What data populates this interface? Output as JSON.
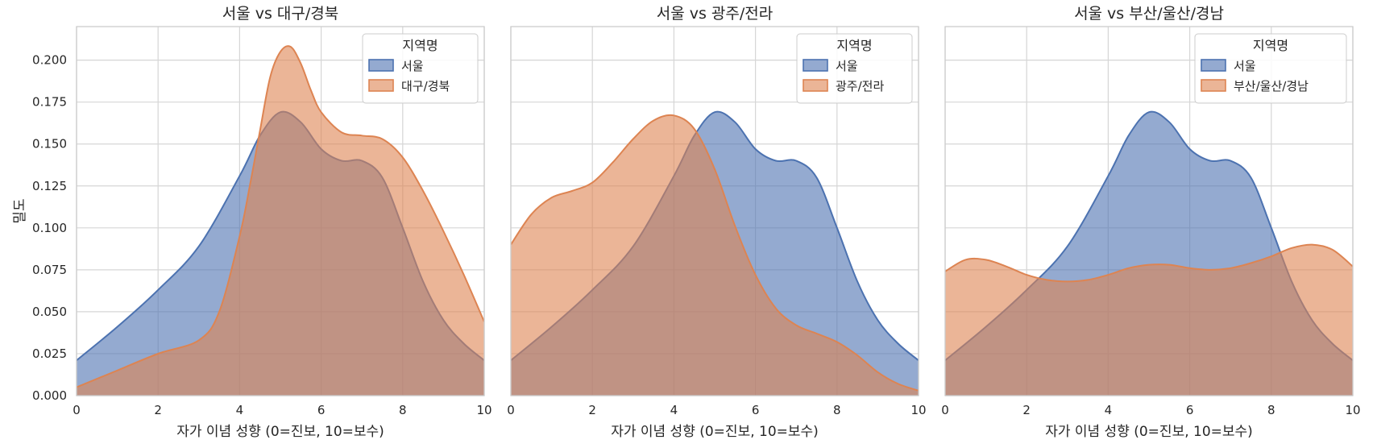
{
  "chart_data": [
    {
      "type": "area",
      "title": "서울 vs 대구/경북",
      "xlabel": "자가 이념 성향 (0=진보, 10=보수)",
      "ylabel": "밀도",
      "xlim": [
        0,
        10
      ],
      "ylim": [
        0,
        0.22
      ],
      "xticks": [
        "0",
        "2",
        "4",
        "6",
        "8",
        "10"
      ],
      "yticks": [
        "0.000",
        "0.025",
        "0.050",
        "0.075",
        "0.100",
        "0.125",
        "0.150",
        "0.175",
        "0.200"
      ],
      "grid": true,
      "legend": {
        "title": "지역명",
        "placement": "top-right"
      },
      "series": [
        {
          "name": "서울",
          "color": "#4c72b0",
          "x": [
            0,
            1,
            2,
            3,
            4,
            4.5,
            5,
            5.5,
            6,
            6.5,
            7,
            7.5,
            8,
            8.5,
            9,
            9.5,
            10
          ],
          "y": [
            0.021,
            0.041,
            0.063,
            0.089,
            0.131,
            0.155,
            0.169,
            0.163,
            0.147,
            0.14,
            0.14,
            0.13,
            0.1,
            0.068,
            0.045,
            0.031,
            0.021
          ]
        },
        {
          "name": "대구/경북",
          "color": "#dd8452",
          "x": [
            0,
            1,
            2,
            3,
            3.5,
            4,
            4.25,
            4.5,
            4.75,
            5,
            5.25,
            5.5,
            5.75,
            6,
            6.5,
            7,
            7.5,
            8,
            8.5,
            9,
            9.5,
            10
          ],
          "y": [
            0.005,
            0.015,
            0.025,
            0.033,
            0.05,
            0.095,
            0.125,
            0.158,
            0.19,
            0.205,
            0.208,
            0.198,
            0.182,
            0.169,
            0.157,
            0.155,
            0.153,
            0.142,
            0.122,
            0.098,
            0.072,
            0.044
          ]
        }
      ]
    },
    {
      "type": "area",
      "title": "서울 vs 광주/전라",
      "xlabel": "자가 이념 성향 (0=진보, 10=보수)",
      "ylabel": "",
      "xlim": [
        0,
        10
      ],
      "ylim": [
        0,
        0.22
      ],
      "xticks": [
        "0",
        "2",
        "4",
        "6",
        "8",
        "10"
      ],
      "grid": true,
      "legend": {
        "title": "지역명",
        "placement": "top-right"
      },
      "series": [
        {
          "name": "서울",
          "color": "#4c72b0",
          "x": [
            0,
            1,
            2,
            3,
            4,
            4.5,
            5,
            5.5,
            6,
            6.5,
            7,
            7.5,
            8,
            8.5,
            9,
            9.5,
            10
          ],
          "y": [
            0.021,
            0.041,
            0.063,
            0.089,
            0.131,
            0.155,
            0.169,
            0.163,
            0.147,
            0.14,
            0.14,
            0.13,
            0.1,
            0.068,
            0.045,
            0.031,
            0.021
          ]
        },
        {
          "name": "광주/전라",
          "color": "#dd8452",
          "x": [
            0,
            0.5,
            1,
            1.5,
            2,
            2.5,
            3,
            3.5,
            4,
            4.5,
            5,
            5.5,
            6,
            6.5,
            7,
            7.5,
            8,
            8.5,
            9,
            9.5,
            10
          ],
          "y": [
            0.09,
            0.108,
            0.118,
            0.122,
            0.127,
            0.139,
            0.153,
            0.164,
            0.167,
            0.159,
            0.135,
            0.101,
            0.072,
            0.052,
            0.042,
            0.037,
            0.032,
            0.024,
            0.014,
            0.007,
            0.003
          ]
        }
      ]
    },
    {
      "type": "area",
      "title": "서울 vs 부산/울산/경남",
      "xlabel": "자가 이념 성향 (0=진보, 10=보수)",
      "ylabel": "",
      "xlim": [
        0,
        10
      ],
      "ylim": [
        0,
        0.22
      ],
      "xticks": [
        "0",
        "2",
        "4",
        "6",
        "8",
        "10"
      ],
      "grid": true,
      "legend": {
        "title": "지역명",
        "placement": "top-right"
      },
      "series": [
        {
          "name": "서울",
          "color": "#4c72b0",
          "x": [
            0,
            1,
            2,
            3,
            4,
            4.5,
            5,
            5.5,
            6,
            6.5,
            7,
            7.5,
            8,
            8.5,
            9,
            9.5,
            10
          ],
          "y": [
            0.021,
            0.041,
            0.063,
            0.089,
            0.131,
            0.155,
            0.169,
            0.163,
            0.147,
            0.14,
            0.14,
            0.13,
            0.1,
            0.068,
            0.045,
            0.031,
            0.021
          ]
        },
        {
          "name": "부산/울산/경남",
          "color": "#dd8452",
          "x": [
            0,
            0.5,
            1,
            1.5,
            2,
            2.5,
            3,
            3.5,
            4,
            4.5,
            5,
            5.5,
            6,
            6.5,
            7,
            7.5,
            8,
            8.5,
            9,
            9.5,
            10
          ],
          "y": [
            0.074,
            0.081,
            0.081,
            0.077,
            0.072,
            0.069,
            0.068,
            0.069,
            0.072,
            0.076,
            0.078,
            0.078,
            0.076,
            0.075,
            0.076,
            0.079,
            0.083,
            0.088,
            0.09,
            0.087,
            0.077
          ]
        }
      ]
    }
  ]
}
